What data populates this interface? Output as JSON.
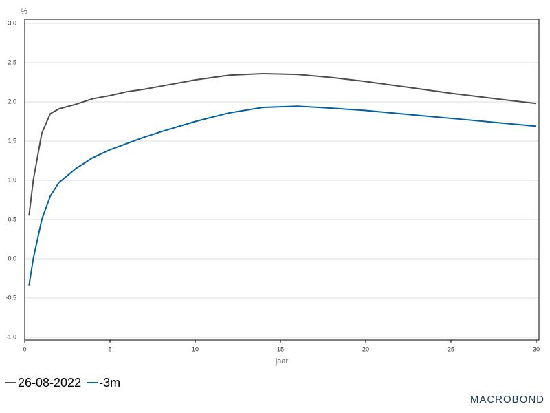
{
  "chart_data": {
    "type": "line",
    "y_label": "%",
    "x_label": "jaar",
    "brand": "MACROBOND",
    "x": [
      0.25,
      0.5,
      1,
      1.5,
      2,
      3,
      4,
      5,
      6,
      7,
      8,
      10,
      12,
      14,
      16,
      18,
      20,
      22,
      25,
      28,
      30
    ],
    "series": [
      {
        "name": "26-08-2022",
        "color": "#4d4d4d",
        "values": [
          0.55,
          1.0,
          1.6,
          1.85,
          1.91,
          1.97,
          2.04,
          2.08,
          2.13,
          2.16,
          2.2,
          2.28,
          2.34,
          2.36,
          2.35,
          2.31,
          2.26,
          2.2,
          2.11,
          2.03,
          1.98
        ]
      },
      {
        "name": "-3m",
        "color": "#0060a0",
        "values": [
          -0.34,
          0.0,
          0.5,
          0.8,
          0.97,
          1.15,
          1.29,
          1.39,
          1.47,
          1.55,
          1.62,
          1.75,
          1.86,
          1.93,
          1.945,
          1.92,
          1.89,
          1.85,
          1.79,
          1.73,
          1.69
        ]
      }
    ],
    "xlim": [
      0,
      30
    ],
    "xticks": [
      0,
      5,
      10,
      15,
      20,
      25,
      30
    ],
    "ylim": [
      -1,
      3
    ],
    "yticks": [
      {
        "value": -1,
        "label": "-1,0"
      },
      {
        "value": -0.5,
        "label": "-0,5"
      },
      {
        "value": 0,
        "label": "0,0"
      },
      {
        "value": 0.5,
        "label": "0,5"
      },
      {
        "value": 1,
        "label": "1,0"
      },
      {
        "value": 1.5,
        "label": "1,5"
      },
      {
        "value": 2,
        "label": "2,0"
      },
      {
        "value": 2.5,
        "label": "2,5"
      },
      {
        "value": 3,
        "label": "3,0"
      }
    ],
    "grid": true
  }
}
